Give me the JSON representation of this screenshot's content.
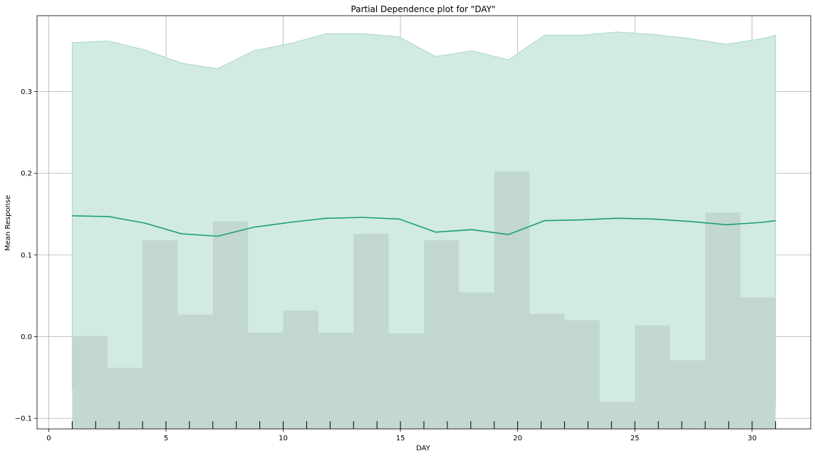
{
  "chart_data": {
    "type": "line",
    "title": "Partial Dependence plot for \"DAY\"",
    "xlabel": "DAY",
    "ylabel": "Mean Response",
    "xlim": [
      -0.5,
      32.5
    ],
    "ylim": [
      -0.113,
      0.393
    ],
    "grid": true,
    "x_ticks": [
      0,
      5,
      10,
      15,
      20,
      25,
      30
    ],
    "x_tick_labels": [
      "0",
      "5",
      "10",
      "15",
      "20",
      "25",
      "30"
    ],
    "y_ticks": [
      -0.1,
      0.0,
      0.1,
      0.2,
      0.3
    ],
    "y_tick_labels": [
      "−0.1",
      "0.0",
      "0.1",
      "0.2",
      "0.3"
    ],
    "colors": {
      "line": "#1b9e77",
      "band": "#d1ebe2",
      "band_edge": "#a9d8c7",
      "histogram": "#c0d5cf",
      "histogram_below": "#e4e4e4"
    },
    "series": [
      {
        "x": [
          1,
          2.55,
          4.1,
          5.65,
          7.2,
          8.75,
          10.3,
          11.85,
          13.4,
          14.95,
          16.5,
          18.05,
          19.6,
          21.15,
          22.7,
          24.25,
          25.8,
          27.35,
          28.9,
          30.45,
          31
        ],
        "values": [
          0.148,
          0.147,
          0.139,
          0.126,
          0.123,
          0.134,
          0.14,
          0.145,
          0.146,
          0.144,
          0.128,
          0.131,
          0.125,
          0.142,
          0.143,
          0.145,
          0.144,
          0.141,
          0.137,
          0.14,
          0.142
        ],
        "upper": [
          0.36,
          0.362,
          0.351,
          0.335,
          0.328,
          0.35,
          0.359,
          0.371,
          0.371,
          0.367,
          0.343,
          0.35,
          0.339,
          0.369,
          0.369,
          0.373,
          0.37,
          0.365,
          0.358,
          0.365,
          0.369
        ],
        "lower": [
          -0.064,
          -0.068,
          -0.072,
          -0.083,
          -0.082,
          -0.083,
          -0.08,
          -0.081,
          -0.079,
          -0.08,
          -0.086,
          -0.088,
          -0.088,
          -0.084,
          -0.082,
          -0.082,
          -0.082,
          -0.083,
          -0.085,
          -0.085,
          -0.085
        ]
      }
    ],
    "histogram": {
      "bin_edges": [
        1,
        2.5,
        4,
        5.5,
        7,
        8.5,
        10,
        11.5,
        13,
        14.5,
        16,
        17.5,
        19,
        20.5,
        22,
        23.5,
        25,
        26.5,
        28,
        29.5,
        31
      ],
      "tops": [
        0.001,
        -0.038,
        0.118,
        0.027,
        0.141,
        0.005,
        0.032,
        0.005,
        0.126,
        0.004,
        0.118,
        0.054,
        0.202,
        0.028,
        0.02,
        -0.08,
        0.014,
        -0.029,
        0.152,
        0.048
      ]
    },
    "rug_x": [
      1,
      2,
      3,
      4,
      5,
      6,
      7,
      8,
      9,
      10,
      11,
      12,
      13,
      14,
      15,
      16,
      17,
      18,
      19,
      20,
      21,
      22,
      23,
      24,
      25,
      26,
      27,
      28,
      29,
      30,
      31
    ]
  }
}
